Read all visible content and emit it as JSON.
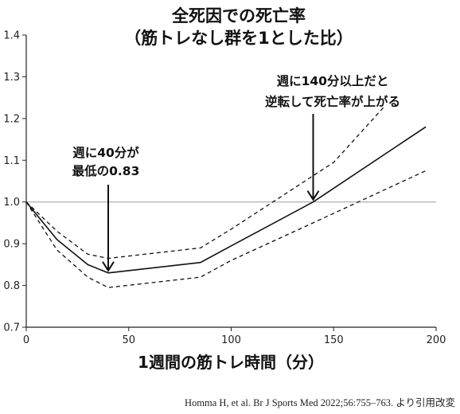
{
  "chart_data": {
    "type": "line",
    "title": "全死因での死亡率",
    "subtitle": "（筋トレなし群を1とした比）",
    "xlabel": "1週間の筋トレ時間（分）",
    "ylabel": "",
    "xlim": [
      0,
      200
    ],
    "ylim": [
      0.7,
      1.4
    ],
    "xticks": [
      "0",
      "50",
      "100",
      "150",
      "200"
    ],
    "yticks": [
      "0.7",
      "0.8",
      "0.9",
      "1.0",
      "1.1",
      "1.2",
      "1.3",
      "1.4"
    ],
    "reference_line": 1.0,
    "series": [
      {
        "style": "solid",
        "x": [
          0,
          15,
          30,
          40,
          85,
          100,
          140,
          195
        ],
        "y": [
          1.0,
          0.91,
          0.85,
          0.83,
          0.855,
          0.895,
          1.0,
          1.18
        ]
      },
      {
        "style": "dashed",
        "x": [
          0,
          15,
          30,
          40,
          85,
          100,
          150,
          175
        ],
        "y": [
          1.0,
          0.93,
          0.875,
          0.865,
          0.89,
          0.935,
          1.095,
          1.23
        ]
      },
      {
        "style": "dashed",
        "x": [
          0,
          15,
          30,
          40,
          85,
          100,
          140,
          195
        ],
        "y": [
          1.0,
          0.885,
          0.82,
          0.795,
          0.82,
          0.86,
          0.95,
          1.075
        ]
      }
    ],
    "annotations": [
      {
        "lines": [
          "週に40分が",
          "最低の0.83"
        ],
        "arrow_x": 40,
        "arrow_y": 0.83
      },
      {
        "lines": [
          "週に140分以上だと",
          "逆転して死亡率が上がる"
        ],
        "arrow_x": 140,
        "arrow_y": 1.0
      }
    ],
    "citation": "Homma H, et al. Br J Sports Med 2022;56:755–763. より引用改変"
  }
}
